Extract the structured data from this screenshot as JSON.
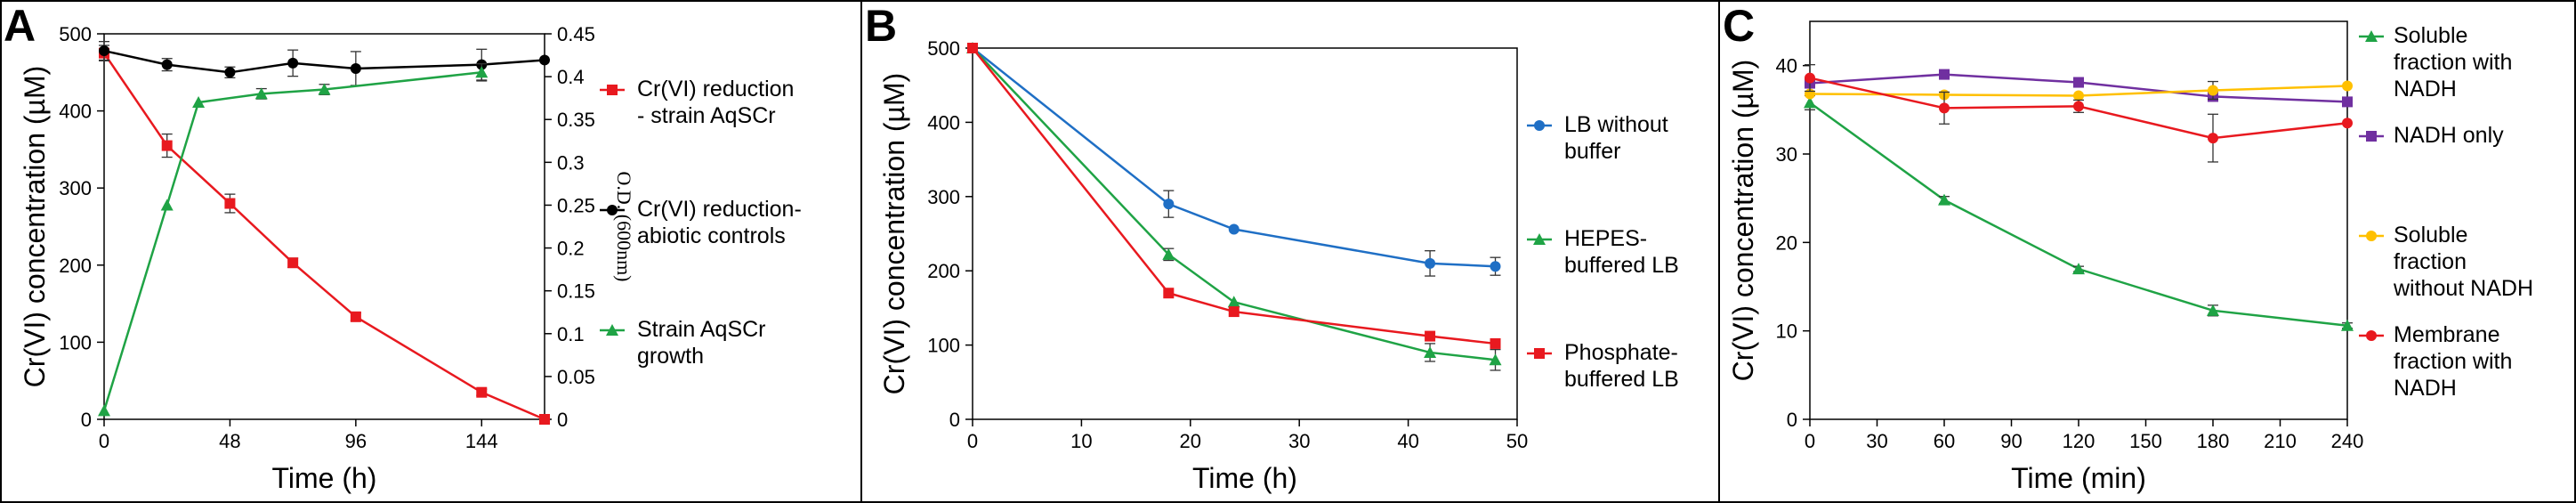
{
  "chart_data": [
    {
      "panel": "A",
      "type": "line",
      "xlabel": "Time (h)",
      "ylabel": "Cr(VI) concentration (µM)",
      "y2label": "O.D. (600nm)",
      "xlim": [
        0,
        168
      ],
      "xticks": [
        0,
        48,
        96,
        144
      ],
      "ylim": [
        0,
        500
      ],
      "yticks": [
        0,
        100,
        200,
        300,
        400,
        500
      ],
      "y2lim": [
        0,
        0.45
      ],
      "y2ticks": [
        "0",
        "0.05",
        "0.1",
        "0.15",
        "0.2",
        "0.25",
        "0.3",
        "0.35",
        "0.4",
        "0.45"
      ],
      "series": [
        {
          "name": "Cr(VI) reduction - strain AqSCr",
          "color": "#e8191f",
          "marker": "square",
          "axis": "left",
          "x": [
            0,
            24,
            48,
            72,
            96,
            144,
            168
          ],
          "y": [
            475,
            355,
            280,
            203,
            133,
            35,
            0
          ],
          "err": [
            10,
            15,
            12,
            6,
            5,
            4,
            3
          ]
        },
        {
          "name": "Cr(VI) reduction- abiotic controls",
          "color": "#000000",
          "marker": "circle",
          "axis": "left",
          "x": [
            0,
            24,
            48,
            72,
            96,
            144,
            168
          ],
          "y": [
            478,
            460,
            450,
            462,
            455,
            460,
            466
          ],
          "err": [
            12,
            8,
            7,
            17,
            22,
            20,
            0
          ]
        },
        {
          "name": "Strain AqSCr growth",
          "color": "#1fa345",
          "marker": "triangle",
          "axis": "right",
          "x": [
            0,
            24,
            36,
            60,
            84,
            144
          ],
          "y": [
            0.01,
            0.25,
            0.37,
            0.38,
            0.385,
            0.405
          ],
          "err": [
            0,
            0,
            0,
            0.006,
            0.006,
            0.01
          ]
        }
      ],
      "legend": [
        "Cr(VI) reduction - strain AqSCr",
        "Cr(VI) reduction- abiotic controls",
        "Strain AqSCr growth"
      ]
    },
    {
      "panel": "B",
      "type": "line",
      "xlabel": "Time (h)",
      "ylabel": "Cr(VI) concentration (µM)",
      "xlim": [
        0,
        50
      ],
      "xticks": [
        0,
        10,
        20,
        30,
        40,
        50
      ],
      "ylim": [
        0,
        500
      ],
      "yticks": [
        0,
        100,
        200,
        300,
        400,
        500
      ],
      "series": [
        {
          "name": "LB without buffer",
          "color": "#1f6fc5",
          "marker": "circle",
          "x": [
            0,
            18,
            24,
            42,
            48
          ],
          "y": [
            500,
            290,
            256,
            210,
            206
          ],
          "err": [
            0,
            18,
            0,
            17,
            12
          ]
        },
        {
          "name": "HEPES-buffered LB",
          "color": "#1fa345",
          "marker": "triangle",
          "x": [
            0,
            18,
            24,
            42,
            48
          ],
          "y": [
            500,
            222,
            158,
            90,
            80
          ],
          "err": [
            0,
            8,
            0,
            12,
            14
          ]
        },
        {
          "name": "Phosphate-buffered LB",
          "color": "#e8191f",
          "marker": "square",
          "x": [
            0,
            18,
            24,
            42,
            48
          ],
          "y": [
            500,
            170,
            145,
            112,
            102
          ],
          "err": [
            0,
            0,
            0,
            0,
            0
          ]
        }
      ],
      "legend": [
        "LB without buffer",
        "HEPES-buffered LB",
        "Phosphate-buffered LB"
      ]
    },
    {
      "panel": "C",
      "type": "line",
      "xlabel": "Time (min)",
      "ylabel": "Cr(VI) concentration (µM)",
      "xlim": [
        0,
        240
      ],
      "xticks": [
        0,
        30,
        60,
        90,
        120,
        150,
        180,
        210,
        240
      ],
      "ylim": [
        0,
        45
      ],
      "yticks": [
        0,
        10,
        20,
        30,
        40
      ],
      "series": [
        {
          "name": "Soluble fraction with NADH",
          "color": "#1fa345",
          "marker": "triangle",
          "x": [
            0,
            60,
            120,
            180,
            240
          ],
          "y": [
            35.8,
            24.8,
            17.0,
            12.3,
            10.6
          ],
          "err": [
            0.8,
            0.4,
            0.3,
            0.6,
            0.3
          ]
        },
        {
          "name": "NADH only",
          "color": "#7030a0",
          "marker": "square",
          "x": [
            0,
            60,
            120,
            180,
            240
          ],
          "y": [
            38.0,
            39.0,
            38.1,
            36.5,
            35.9
          ],
          "err": [
            0,
            0,
            0,
            0.5,
            0
          ]
        },
        {
          "name": "Soluble fraction without NADH",
          "color": "#ffc000",
          "marker": "circle",
          "x": [
            0,
            60,
            120,
            180,
            240
          ],
          "y": [
            36.8,
            36.7,
            36.6,
            37.2,
            37.7
          ],
          "err": [
            0,
            0,
            0,
            1.0,
            0
          ]
        },
        {
          "name": "Membrane fraction with NADH",
          "color": "#e8191f",
          "marker": "circle",
          "x": [
            0,
            60,
            120,
            180,
            240
          ],
          "y": [
            38.6,
            35.2,
            35.4,
            31.8,
            33.5
          ],
          "err": [
            1.5,
            1.8,
            0.7,
            2.7,
            0
          ]
        }
      ],
      "legend": [
        "Soluble fraction with NADH",
        "NADH only",
        "Soluble fraction without NADH",
        "Membrane fraction with NADH"
      ]
    }
  ],
  "panels": {
    "A": {
      "label": "A",
      "legend": [
        {
          "lines": [
            "Cr(VI) reduction",
            "- strain AqSCr"
          ]
        },
        {
          "lines": [
            "Cr(VI) reduction-",
            "abiotic controls"
          ]
        },
        {
          "lines": [
            "Strain AqSCr",
            "growth"
          ]
        }
      ]
    },
    "B": {
      "label": "B",
      "legend": [
        {
          "lines": [
            "LB without",
            "buffer"
          ]
        },
        {
          "lines": [
            "HEPES-",
            "buffered LB"
          ]
        },
        {
          "lines": [
            "Phosphate-",
            "buffered LB"
          ]
        }
      ]
    },
    "C": {
      "label": "C",
      "legend": [
        {
          "lines": [
            "Soluble",
            "fraction with",
            "NADH"
          ]
        },
        {
          "lines": [
            "NADH only"
          ]
        },
        {
          "lines": [
            "Soluble",
            "fraction",
            "without NADH"
          ]
        },
        {
          "lines": [
            "Membrane",
            "fraction with",
            "NADH"
          ]
        }
      ]
    }
  }
}
